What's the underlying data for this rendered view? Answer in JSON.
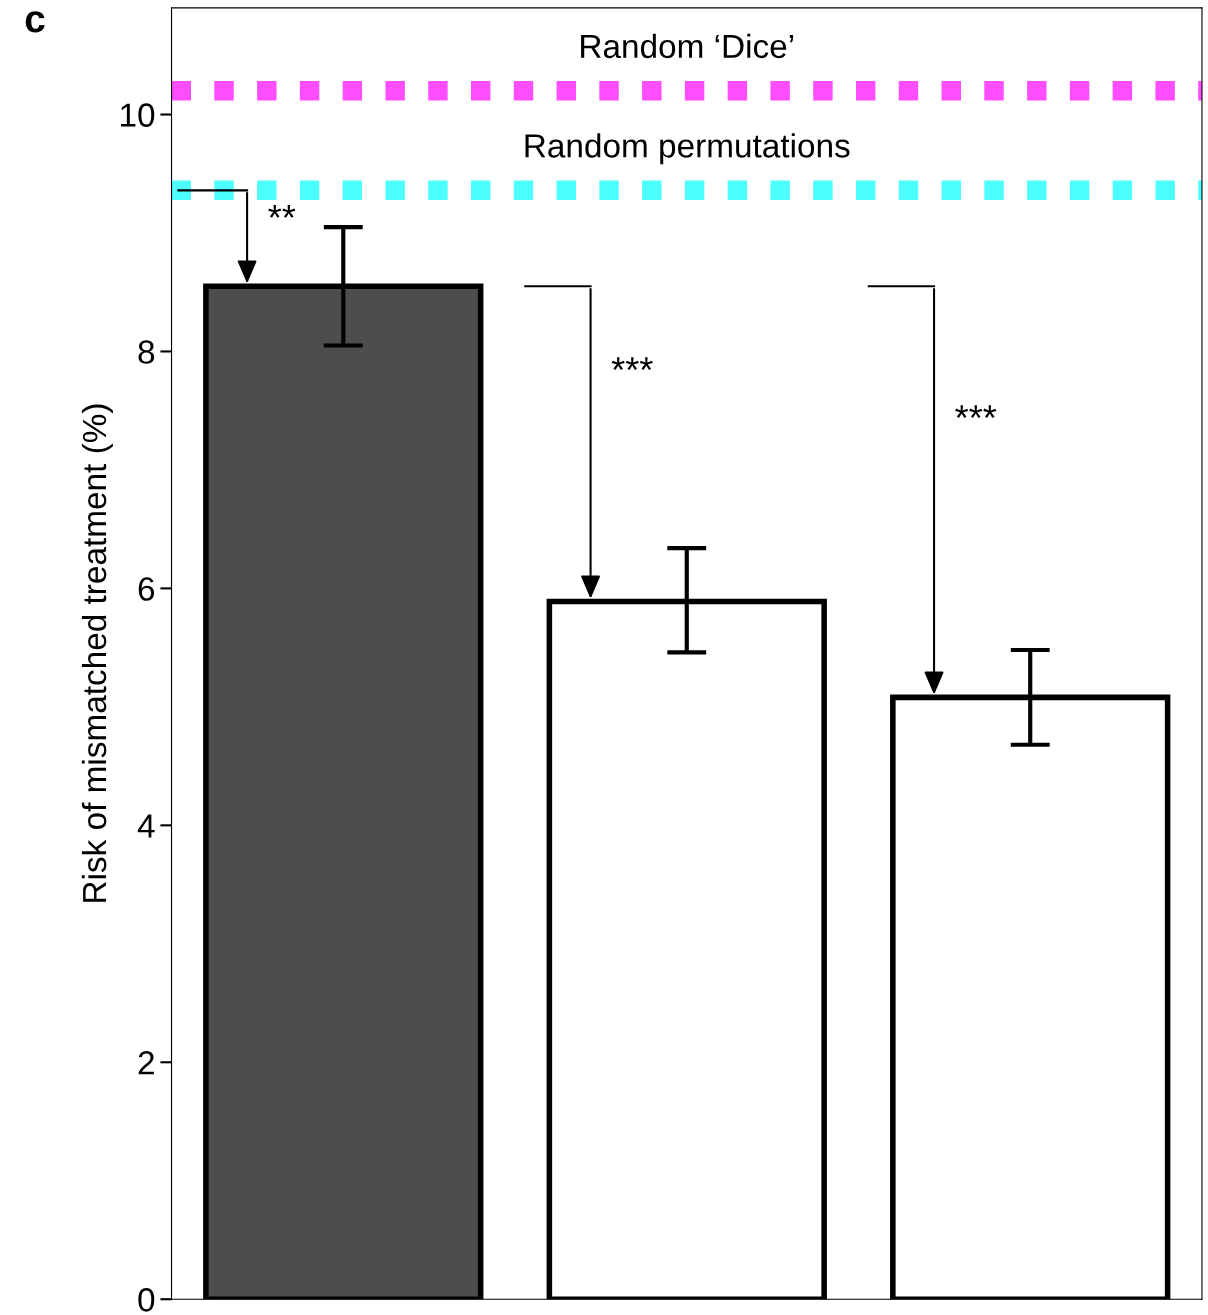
{
  "chart_data": {
    "type": "bar",
    "ylabel": "Risk of mismatched treatment (%)",
    "categories": [
      null,
      null,
      null
    ],
    "values": [
      8.55,
      5.89,
      5.08
    ],
    "colors": [
      "#4d4d4d",
      "#ffffff",
      "#ffffff"
    ],
    "errors": [
      0.5,
      [
        5.46,
        6.34
      ],
      [
        4.68,
        5.48
      ]
    ],
    "ylim": [
      0,
      10.9
    ],
    "yticks": [
      0,
      2,
      4,
      6,
      8,
      10
    ],
    "ref_lines": [
      {
        "axis": "y",
        "value": 10.2,
        "label": "Random ‘Dice’",
        "color": "#ff4dff",
        "line_style": "dotted"
      },
      {
        "axis": "y",
        "value": 9.36,
        "label": "Random permutations",
        "color": "#4dffff",
        "line_style": "dotted"
      }
    ],
    "annotations": [
      "c",
      "**",
      "***",
      "***"
    ],
    "grid": false
  }
}
